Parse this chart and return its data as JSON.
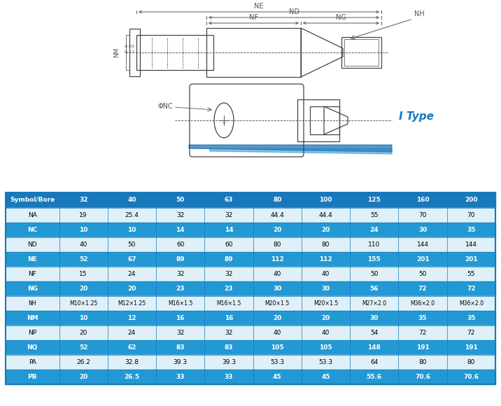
{
  "headers": [
    "Symbol/Bore",
    "32",
    "40",
    "50",
    "63",
    "80",
    "100",
    "125",
    "160",
    "200"
  ],
  "rows": [
    [
      "NA",
      "19",
      "25.4",
      "32",
      "32",
      "44.4",
      "44.4",
      "55",
      "70",
      "70"
    ],
    [
      "NC",
      "10",
      "10",
      "14",
      "14",
      "20",
      "20",
      "24",
      "30",
      "35"
    ],
    [
      "ND",
      "40",
      "50",
      "60",
      "60",
      "80",
      "80",
      "110",
      "144",
      "144"
    ],
    [
      "NE",
      "52",
      "67",
      "89",
      "89",
      "112",
      "112",
      "155",
      "201",
      "201"
    ],
    [
      "NF",
      "15",
      "24",
      "32",
      "32",
      "40",
      "40",
      "50",
      "50",
      "55"
    ],
    [
      "NG",
      "20",
      "20",
      "23",
      "23",
      "30",
      "30",
      "56",
      "72",
      "72"
    ],
    [
      "NH",
      "M10×1.25",
      "M12×1.25",
      "M16×1.5",
      "M16×1.5",
      "M20×1.5",
      "M20×1.5",
      "M27×2.0",
      "M36×2.0",
      "M36×2.0"
    ],
    [
      "NM",
      "10",
      "12",
      "16",
      "16",
      "20",
      "20",
      "30",
      "35",
      "35"
    ],
    [
      "NP",
      "20",
      "24",
      "32",
      "32",
      "40",
      "40",
      "54",
      "72",
      "72"
    ],
    [
      "NQ",
      "52",
      "62",
      "83",
      "83",
      "105",
      "105",
      "148",
      "191",
      "191"
    ],
    [
      "PA",
      "26.2",
      "32.8",
      "39.3",
      "39.3",
      "53.3",
      "53.3",
      "64",
      "80",
      "80"
    ],
    [
      "PB",
      "20",
      "26.5",
      "33",
      "33",
      "45",
      "45",
      "55.6",
      "70.6",
      "70.6"
    ]
  ],
  "highlighted_rows": [
    "NC",
    "NE",
    "NG",
    "NM",
    "NQ",
    "PB"
  ],
  "header_bg": "#1878bb",
  "header_fg": "#ffffff",
  "highlight_bg": "#2299d4",
  "highlight_fg": "#ffffff",
  "normal_bg": "#dff0f8",
  "normal_fg": "#000000",
  "border_color": "#1878bb",
  "outer_border": "#1878bb",
  "itype_color": "#1a7abf",
  "diagram_color": "#444444",
  "dim_color": "#555555"
}
